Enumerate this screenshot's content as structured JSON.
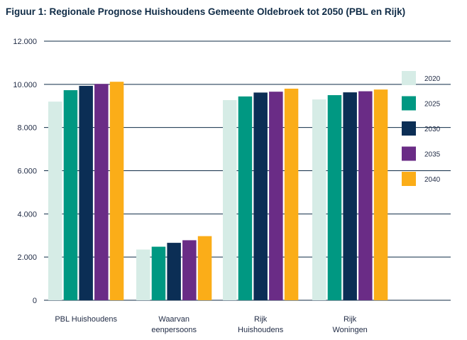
{
  "title": "Figuur 1: Regionale Prognose Huishoudens Gemeente Oldebroek tot 2050 (PBL en Rijk)",
  "chart_data": {
    "type": "bar",
    "title": "Figuur 1: Regionale Prognose Huishoudens Gemeente Oldebroek tot 2050 (PBL en Rijk)",
    "xlabel": "",
    "ylabel": "",
    "ylim": [
      0,
      12000
    ],
    "yticks": [
      0,
      2000,
      4000,
      6000,
      8000,
      10000,
      12000
    ],
    "ytick_labels": [
      "0",
      "2.000",
      "4.000",
      "6.000",
      "8.000",
      "10.000",
      "12.000"
    ],
    "grid": true,
    "legend_position": "right",
    "categories": [
      [
        "PBL Huishoudens"
      ],
      [
        "Waarvan",
        "eenpersoons"
      ],
      [
        "Rijk",
        "Huishoudens"
      ],
      [
        "Rijk",
        "Woningen"
      ]
    ],
    "series": [
      {
        "name": "2020",
        "color": "#d6ece6",
        "values": [
          9200,
          2350,
          9270,
          9300
        ]
      },
      {
        "name": "2025",
        "color": "#009882",
        "values": [
          9730,
          2480,
          9440,
          9500
        ]
      },
      {
        "name": "2030",
        "color": "#0b2e55",
        "values": [
          9930,
          2660,
          9620,
          9630
        ]
      },
      {
        "name": "2035",
        "color": "#6a2c86",
        "values": [
          10020,
          2780,
          9660,
          9680
        ]
      },
      {
        "name": "2040",
        "color": "#fbad18",
        "values": [
          10120,
          2970,
          9800,
          9760
        ]
      }
    ]
  }
}
